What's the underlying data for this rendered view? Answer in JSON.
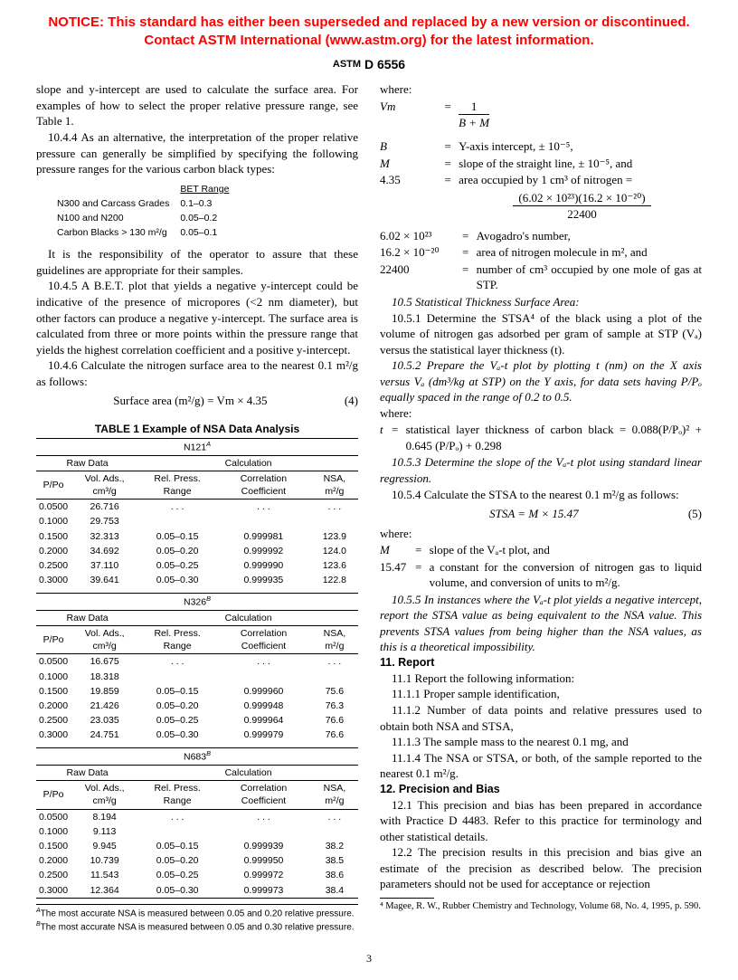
{
  "notice": {
    "line1": "NOTICE: This standard has either been superseded and replaced by a new version or discontinued.",
    "line2": "Contact ASTM International (www.astm.org) for the latest information."
  },
  "header": {
    "doc_id": "D 6556"
  },
  "left": {
    "intro": "slope and y-intercept are used to calculate the surface area. For examples of how to select the proper relative pressure range, see Table 1.",
    "p1044": "10.4.4 As an alternative, the interpretation of the proper relative pressure can generally be simplified by specifying the following pressure ranges for the various carbon black types:",
    "bet_title": "BET Range",
    "bet_rows": [
      [
        "N300 and Carcass Grades",
        "0.1–0.3"
      ],
      [
        "N100 and N200",
        "0.05–0.2"
      ],
      [
        "Carbon Blacks > 130 m²/g",
        "0.05–0.1"
      ]
    ],
    "p_resp": "It is the responsibility of the operator to assure that these guidelines are appropriate for their samples.",
    "p1045": "10.4.5 A B.E.T. plot that yields a negative y-intercept could be indicative of the presence of micropores (<2 nm diameter), but other factors can produce a negative y-intercept. The surface area is calculated from three or more points within the pressure range that yields the highest correlation coefficient and a positive y-intercept.",
    "p1046": "10.4.6 Calculate the nitrogen surface area to the nearest 0.1 m²/g as follows:",
    "eq4": "Surface area (m²/g) = Vm × 4.35",
    "eq4_num": "(4)",
    "table1": {
      "title": "TABLE 1  Example of NSA Data Analysis",
      "sections": [
        {
          "name": "N121",
          "sup": "A",
          "col_headers": [
            "P/Po",
            "Vol. Ads., cm³/g",
            "Rel. Press. Range",
            "Correlation Coefficient",
            "NSA, m²/g"
          ],
          "group_headers": [
            "Raw Data",
            "Calculation"
          ],
          "rows": [
            [
              "0.0500",
              "26.716",
              ". . .",
              ". . .",
              ". . ."
            ],
            [
              "0.1000",
              "29.753",
              "",
              "",
              ""
            ],
            [
              "0.1500",
              "32.313",
              "0.05–0.15",
              "0.999981",
              "123.9"
            ],
            [
              "0.2000",
              "34.692",
              "0.05–0.20",
              "0.999992",
              "124.0"
            ],
            [
              "0.2500",
              "37.110",
              "0.05–0.25",
              "0.999990",
              "123.6"
            ],
            [
              "0.3000",
              "39.641",
              "0.05–0.30",
              "0.999935",
              "122.8"
            ]
          ]
        },
        {
          "name": "N326",
          "sup": "B",
          "rows": [
            [
              "0.0500",
              "16.675",
              ". . .",
              ". . .",
              ". . ."
            ],
            [
              "0.1000",
              "18.318",
              "",
              "",
              ""
            ],
            [
              "0.1500",
              "19.859",
              "0.05–0.15",
              "0.999960",
              "75.6"
            ],
            [
              "0.2000",
              "21.426",
              "0.05–0.20",
              "0.999948",
              "76.3"
            ],
            [
              "0.2500",
              "23.035",
              "0.05–0.25",
              "0.999964",
              "76.6"
            ],
            [
              "0.3000",
              "24.751",
              "0.05–0.30",
              "0.999979",
              "76.6"
            ]
          ]
        },
        {
          "name": "N683",
          "sup": "B",
          "rows": [
            [
              "0.0500",
              "8.194",
              ". . .",
              ". . .",
              ". . ."
            ],
            [
              "0.1000",
              "9.113",
              "",
              "",
              ""
            ],
            [
              "0.1500",
              "9.945",
              "0.05–0.15",
              "0.999939",
              "38.2"
            ],
            [
              "0.2000",
              "10.739",
              "0.05–0.20",
              "0.999950",
              "38.5"
            ],
            [
              "0.2500",
              "11.543",
              "0.05–0.25",
              "0.999972",
              "38.6"
            ],
            [
              "0.3000",
              "12.364",
              "0.05–0.30",
              "0.999973",
              "38.4"
            ]
          ]
        }
      ],
      "footnoteA": "The most accurate NSA is measured between 0.05 and 0.20 relative pressure.",
      "footnoteB": "The most accurate NSA is measured between 0.05 and 0.30 relative pressure."
    }
  },
  "right": {
    "where1_label": "where:",
    "vm_def": "=",
    "vm_frac_top": "1",
    "vm_frac_bot": "B + M",
    "defs1": [
      [
        "B",
        "Y-axis intercept, ± 10⁻⁵,"
      ],
      [
        "M",
        "slope of the straight line, ± 10⁻⁵, and"
      ],
      [
        "4.35",
        "area occupied by 1 cm³ of nitrogen ="
      ]
    ],
    "frac2_top": "(6.02 × 10²³)(16.2 × 10⁻²⁰)",
    "frac2_bot": "22400",
    "defs2": [
      [
        "6.02 × 10²³",
        "Avogadro's number,"
      ],
      [
        "16.2 × 10⁻²⁰",
        "area of nitrogen molecule in m², and"
      ],
      [
        "22400",
        "number of cm³ occupied by one mole of gas at STP."
      ]
    ],
    "p105": "10.5 Statistical Thickness Surface Area:",
    "p1051": "10.5.1 Determine the STSA⁴ of the black using a plot of the volume of nitrogen gas adsorbed per gram of sample at STP (Vₐ) versus the statistical layer thickness (t).",
    "p1052": "10.5.2 Prepare the Vₐ-t plot by plotting t (nm) on the X axis versus Vₐ (dm³/kg at STP) on the Y axis, for data sets having P/Pₒ equally spaced in the range of 0.2 to 0.5.",
    "where2": "where:",
    "t_def": "statistical layer thickness of carbon black = 0.088(P/Pₒ)² + 0.645 (P/Pₒ) + 0.298",
    "p1053": "10.5.3 Determine the slope of the Vₐ-t plot using standard linear regression.",
    "p1054": "10.5.4 Calculate the STSA to the nearest 0.1 m²/g as follows:",
    "eq5": "STSA = M × 15.47",
    "eq5_num": "(5)",
    "where3": "where:",
    "defs3": [
      [
        "M",
        "slope of the Vₐ-t plot, and"
      ],
      [
        "15.47",
        "a constant for the conversion of nitrogen gas to liquid volume, and conversion of units to m²/g."
      ]
    ],
    "p1055": "10.5.5 In instances where the Vₐ-t plot yields a negative intercept, report the STSA value as being equivalent to the NSA value. This prevents STSA values from being higher than the NSA values, as this is a theoretical impossibility.",
    "s11": "11. Report",
    "p111": "11.1 Report the following information:",
    "p1111": "11.1.1 Proper sample identification,",
    "p1112": "11.1.2 Number of data points and relative pressures used to obtain both NSA and STSA,",
    "p1113": "11.1.3 The sample mass to the nearest 0.1 mg, and",
    "p1114": "11.1.4 The NSA or STSA, or both, of the sample reported to the nearest 0.1 m²/g.",
    "s12": "12. Precision and Bias",
    "p121": "12.1 This precision and bias has been prepared in accordance with Practice D 4483. Refer to this practice for terminology and other statistical details.",
    "p122": "12.2 The precision results in this precision and bias give an estimate of the precision as described below. The precision parameters should not be used for acceptance or rejection",
    "footnote4": "⁴ Magee, R. W., Rubber Chemistry and Technology, Volume 68, No. 4, 1995, p. 590."
  },
  "pagenum": "3"
}
